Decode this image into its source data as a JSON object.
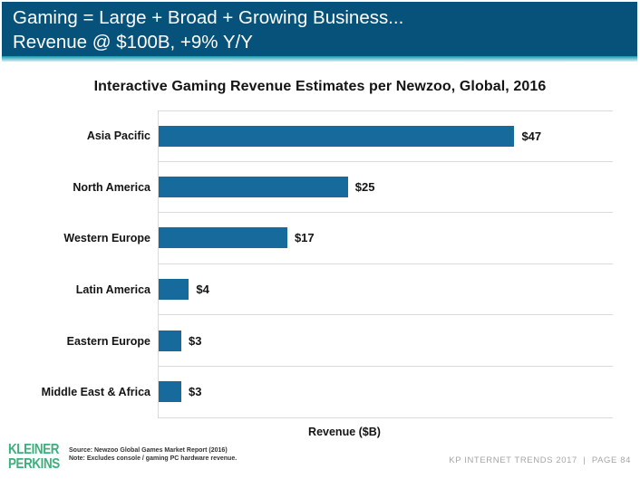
{
  "slide": {
    "header": {
      "line1": "Gaming = Large + Broad + Growing Business...",
      "line2": "Revenue @ $100B, +9% Y/Y"
    },
    "footer": {
      "logo_line1": "KLEINER",
      "logo_line2": "PERKINS",
      "source_line1": "Source: Newzoo Global Games Market Report (2016)",
      "source_line2": "Note: Excludes console / gaming PC hardware revenue.",
      "right_text": "KP INTERNET TRENDS 2017  |  PAGE 84"
    }
  },
  "chart_data": {
    "type": "bar",
    "orientation": "horizontal",
    "title": "Interactive Gaming Revenue Estimates per Newzoo, Global, 2016",
    "categories": [
      "Asia Pacific",
      "North America",
      "Western Europe",
      "Latin America",
      "Eastern Europe",
      "Middle East & Africa"
    ],
    "values": [
      47,
      25,
      17,
      4,
      3,
      3
    ],
    "value_labels": [
      "$47",
      "$25",
      "$17",
      "$4",
      "$3",
      "$3"
    ],
    "xlabel": "Revenue ($B)",
    "xlim": [
      0,
      60
    ],
    "legend": "none",
    "grid": "horizontal-band-separators"
  },
  "colors": {
    "header_bg": "#06527A",
    "stripe_top": "#1697B2",
    "stripe_bottom": "#D9EFF3",
    "bar": "#176A9C",
    "grid_line": "#DADADA",
    "logo_green": "#3BAF7C",
    "footer_gray": "#A6A6A6"
  }
}
